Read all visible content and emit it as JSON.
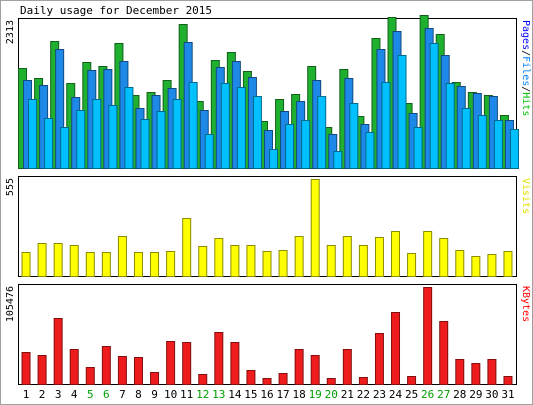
{
  "chart_data": {
    "type": "bar",
    "title": "Daily usage for December 2015",
    "days": [
      "1",
      "2",
      "3",
      "4",
      "5",
      "6",
      "7",
      "8",
      "9",
      "10",
      "11",
      "12",
      "13",
      "14",
      "15",
      "16",
      "17",
      "18",
      "19",
      "20",
      "21",
      "22",
      "23",
      "24",
      "25",
      "26",
      "27",
      "28",
      "29",
      "30",
      "31"
    ],
    "weekend_days": [
      "5",
      "6",
      "12",
      "13",
      "19",
      "20",
      "26",
      "27"
    ],
    "panels": [
      {
        "id": "hits",
        "max_label": "2313",
        "ymax": 2313,
        "right_label_parts": [
          {
            "text": "Pages",
            "color": "#0000ff"
          },
          {
            "text": "/",
            "color": "#000000"
          },
          {
            "text": "Files",
            "color": "#0080ff"
          },
          {
            "text": "/",
            "color": "#000000"
          },
          {
            "text": "Hits",
            "color": "#00c000"
          }
        ],
        "series": [
          {
            "name": "Hits",
            "color": "#20b030",
            "values": [
              1580,
              1420,
              2000,
              1340,
              1670,
              1600,
              1960,
              1150,
              1190,
              1380,
              2260,
              1050,
              1700,
              1820,
              1520,
              740,
              1080,
              1160,
              1600,
              640,
              1550,
              820,
              2040,
              2370,
              1030,
              2400,
              2110,
              1350,
              1190,
              1150,
              830
            ]
          },
          {
            "name": "Files",
            "color": "#1e88e8",
            "values": [
              1390,
              1310,
              1880,
              1120,
              1540,
              1560,
              1690,
              950,
              1150,
              1260,
              1980,
              910,
              1590,
              1690,
              1430,
              600,
              900,
              1060,
              1390,
              540,
              1420,
              690,
              1880,
              2150,
              870,
              2210,
              1780,
              1290,
              1180,
              1130,
              760
            ]
          },
          {
            "name": "Pages",
            "color": "#00c0ff",
            "values": [
              1080,
              780,
              650,
              920,
              1080,
              990,
              1270,
              770,
              890,
              1080,
              1360,
              540,
              1340,
              1270,
              1140,
              300,
              690,
              760,
              1140,
              270,
              1020,
              560,
              1360,
              1780,
              640,
              1970,
              1330,
              950,
              830,
              760,
              610
            ]
          }
        ]
      },
      {
        "id": "visits",
        "max_label": "555",
        "ymax": 555,
        "right_label_parts": [
          {
            "text": "Visits",
            "color": "#e0e000"
          }
        ],
        "series": [
          {
            "name": "Visits",
            "color": "#ffff00",
            "values": [
              140,
              190,
              190,
              180,
              135,
              140,
              230,
              135,
              140,
              145,
              330,
              170,
              220,
              180,
              180,
              145,
              150,
              230,
              555,
              175,
              230,
              175,
              225,
              255,
              130,
              260,
              220,
              150,
              115,
              125,
              145
            ]
          }
        ]
      },
      {
        "id": "kbytes",
        "max_label": "105476",
        "ymax": 105476,
        "right_label_parts": [
          {
            "text": "KBytes",
            "color": "#ff0000"
          }
        ],
        "series": [
          {
            "name": "KBytes",
            "color": "#ee1c1c",
            "values": [
              35000,
              31000,
              72000,
              38000,
              18000,
              41000,
              30000,
              29000,
              13000,
              47000,
              46000,
              11000,
              57000,
              46000,
              15000,
              7000,
              12000,
              38000,
              32000,
              6000,
              38000,
              8000,
              55000,
              78000,
              9000,
              106000,
              69000,
              27000,
              23000,
              27000,
              9000
            ]
          }
        ]
      }
    ]
  }
}
